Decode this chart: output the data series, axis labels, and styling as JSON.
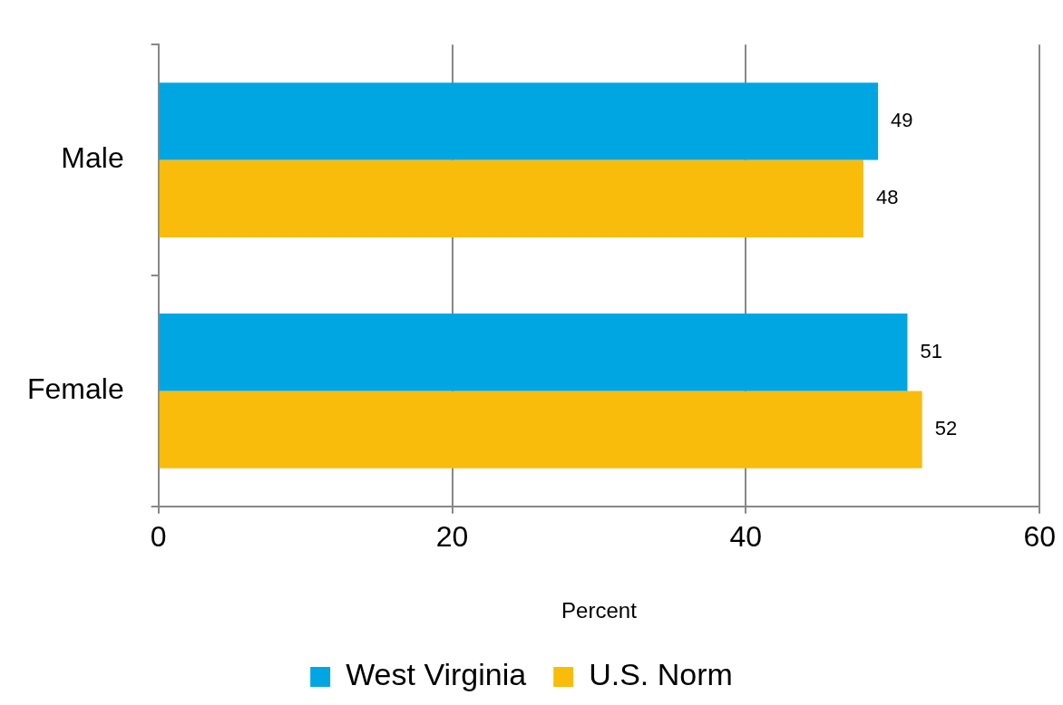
{
  "chart_data": {
    "type": "bar",
    "orientation": "horizontal",
    "categories": [
      "Male",
      "Female"
    ],
    "series": [
      {
        "name": "West Virginia",
        "color": "#00a6e2",
        "values": [
          49,
          51
        ]
      },
      {
        "name": "U.S. Norm",
        "color": "#f9bc0a",
        "values": [
          48,
          52
        ]
      }
    ],
    "xlabel": "Percent",
    "xlim": [
      0,
      60
    ],
    "xticks": [
      0,
      20,
      40,
      60
    ],
    "grid": "x",
    "legend": "bottom",
    "data_labels": true
  }
}
